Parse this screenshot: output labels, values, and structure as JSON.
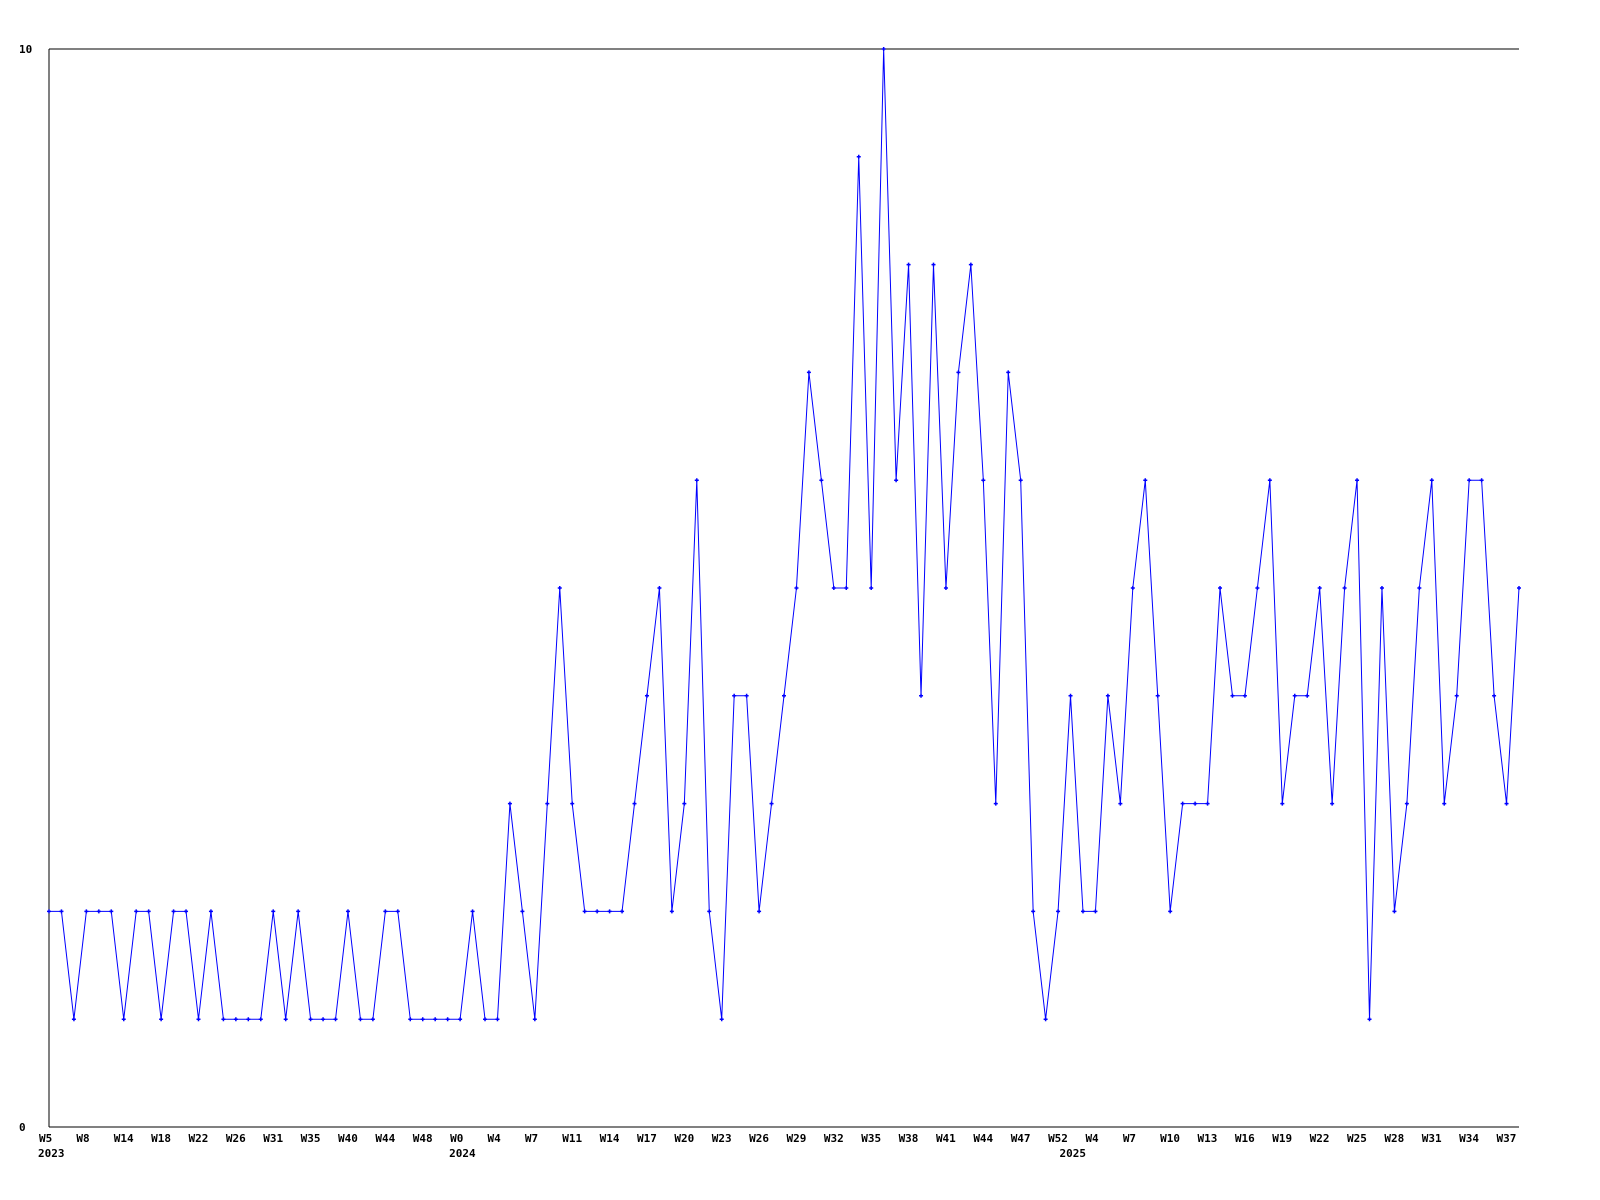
{
  "chart_data": {
    "type": "line",
    "title": "",
    "xlabel": "",
    "ylabel": "",
    "ylim": [
      0,
      10
    ],
    "y_ticks": [
      "0",
      "10"
    ],
    "grid": false,
    "line_color": "#0000ff",
    "axis_color": "#000000",
    "x_ticks": [
      {
        "index": 0,
        "label": "W5"
      },
      {
        "index": 3,
        "label": "W8"
      },
      {
        "index": 6,
        "label": "W14"
      },
      {
        "index": 9,
        "label": "W18"
      },
      {
        "index": 12,
        "label": "W22"
      },
      {
        "index": 15,
        "label": "W26"
      },
      {
        "index": 18,
        "label": "W31"
      },
      {
        "index": 21,
        "label": "W35"
      },
      {
        "index": 24,
        "label": "W40"
      },
      {
        "index": 27,
        "label": "W44"
      },
      {
        "index": 30,
        "label": "W48"
      },
      {
        "index": 33,
        "label": "W0"
      },
      {
        "index": 36,
        "label": "W4"
      },
      {
        "index": 39,
        "label": "W7"
      },
      {
        "index": 42,
        "label": "W11"
      },
      {
        "index": 45,
        "label": "W14"
      },
      {
        "index": 48,
        "label": "W17"
      },
      {
        "index": 51,
        "label": "W20"
      },
      {
        "index": 54,
        "label": "W23"
      },
      {
        "index": 57,
        "label": "W26"
      },
      {
        "index": 60,
        "label": "W29"
      },
      {
        "index": 63,
        "label": "W32"
      },
      {
        "index": 66,
        "label": "W35"
      },
      {
        "index": 69,
        "label": "W38"
      },
      {
        "index": 72,
        "label": "W41"
      },
      {
        "index": 75,
        "label": "W44"
      },
      {
        "index": 78,
        "label": "W47"
      },
      {
        "index": 81,
        "label": "W52"
      },
      {
        "index": 84,
        "label": "W4"
      },
      {
        "index": 87,
        "label": "W7"
      },
      {
        "index": 90,
        "label": "W10"
      },
      {
        "index": 93,
        "label": "W13"
      },
      {
        "index": 96,
        "label": "W16"
      },
      {
        "index": 99,
        "label": "W19"
      },
      {
        "index": 102,
        "label": "W22"
      },
      {
        "index": 105,
        "label": "W25"
      },
      {
        "index": 108,
        "label": "W28"
      },
      {
        "index": 111,
        "label": "W31"
      },
      {
        "index": 114,
        "label": "W34"
      },
      {
        "index": 117,
        "label": "W37"
      }
    ],
    "year_labels": [
      {
        "index": 0,
        "label": "2023"
      },
      {
        "index": 33,
        "label": "2024"
      },
      {
        "index": 82,
        "label": "2025"
      }
    ],
    "values": [
      2,
      2,
      1,
      2,
      2,
      2,
      1,
      2,
      2,
      1,
      2,
      2,
      1,
      2,
      1,
      1,
      1,
      1,
      2,
      1,
      2,
      1,
      1,
      1,
      2,
      1,
      1,
      2,
      2,
      1,
      1,
      1,
      1,
      1,
      2,
      1,
      1,
      3,
      2,
      1,
      3,
      5,
      3,
      2,
      2,
      2,
      2,
      3,
      4,
      5,
      2,
      3,
      6,
      2,
      1,
      4,
      4,
      2,
      3,
      4,
      5,
      7,
      6,
      5,
      5,
      9,
      5,
      10,
      6,
      8,
      4,
      8,
      5,
      7,
      8,
      6,
      3,
      7,
      6,
      2,
      1,
      2,
      4,
      2,
      2,
      4,
      3,
      5,
      6,
      4,
      2,
      3,
      3,
      3,
      5,
      4,
      4,
      5,
      6,
      3,
      4,
      4,
      5,
      3,
      5,
      6,
      1,
      5,
      2,
      3,
      5,
      6,
      3,
      4,
      6,
      6,
      4,
      3,
      5
    ]
  }
}
